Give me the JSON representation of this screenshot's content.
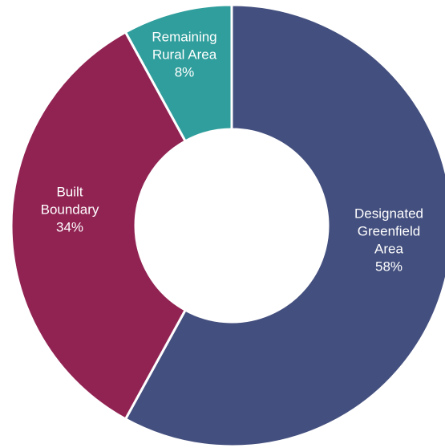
{
  "chart_data": {
    "type": "pie",
    "variant": "donut",
    "title": "",
    "slices": [
      {
        "name_lines": [
          "Designated",
          "Greenfield",
          "Area"
        ],
        "value": 58,
        "value_label": "58%",
        "color": "#434f7e"
      },
      {
        "name_lines": [
          "Built",
          "Boundary"
        ],
        "value": 34,
        "value_label": "34%",
        "color": "#912353"
      },
      {
        "name_lines": [
          "Remaining",
          "Rural Area"
        ],
        "value": 8,
        "value_label": "8%",
        "color": "#2f9e9c"
      }
    ],
    "start_angle_deg": 0,
    "direction": "clockwise",
    "legend": "none"
  }
}
